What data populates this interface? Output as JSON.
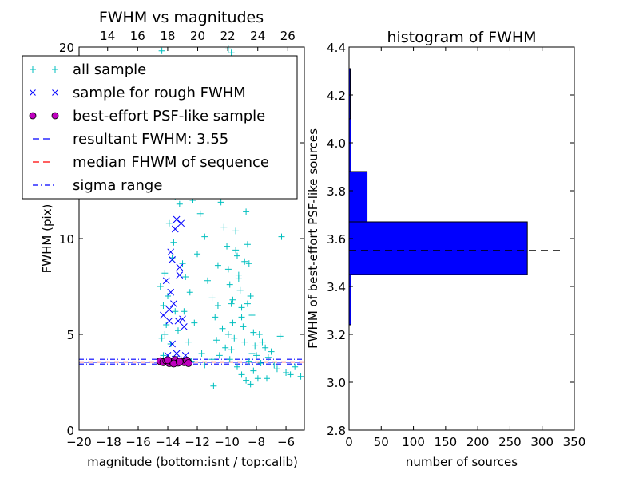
{
  "chart_data": [
    {
      "type": "scatter",
      "title": "FWHM vs magnitudes",
      "xlabel": "magnitude (bottom:isnt / top:calib)",
      "ylabel": "FWHM (pix)",
      "xlim": [
        -20,
        -4.76
      ],
      "ylim": [
        0,
        20
      ],
      "xticks": [
        "−20",
        "−18",
        "−16",
        "−14",
        "−12",
        "−10",
        "−8",
        "−6"
      ],
      "xtick_values": [
        -20,
        -18,
        -16,
        -14,
        -12,
        -10,
        -8,
        -6
      ],
      "yticks": [
        "0",
        "5",
        "10",
        "15",
        "20"
      ],
      "ytick_values": [
        0,
        5,
        10,
        15,
        20
      ],
      "top_xlim": [
        12.1,
        27.1
      ],
      "top_xticks": [
        "14",
        "16",
        "18",
        "20",
        "22",
        "24",
        "26"
      ],
      "top_xtick_values": [
        14,
        16,
        18,
        20,
        22,
        24,
        26
      ],
      "legend_position": "upper-left",
      "legend": [
        "all sample",
        "sample for rough FWHM",
        "best-effort PSF-like sample",
        "resultant FWHM: 3.55",
        "median FHWM of sequence",
        "sigma range"
      ],
      "colors": {
        "all": "#00bfbf",
        "rough": "#0000ff",
        "best": "#bf00bf",
        "resultant": "#0000ff",
        "median": "#ff0000",
        "sigma": "#0000ff"
      },
      "resultant_fwhm": 3.55,
      "median_fwhm": 3.56,
      "sigma_range": [
        3.45,
        3.7
      ],
      "series": [
        {
          "name": "all sample",
          "marker": "+",
          "points": [
            [
              -14.4,
              19.8
            ],
            [
              -9.9,
              19.9
            ],
            [
              -9.7,
              19.7
            ],
            [
              -14.3,
              6.5
            ],
            [
              -14.5,
              7.5
            ],
            [
              -14.2,
              8.2
            ],
            [
              -14.0,
              7.0
            ],
            [
              -14.1,
              5.5
            ],
            [
              -13.8,
              4.5
            ],
            [
              -14.4,
              4.8
            ],
            [
              -14.3,
              3.9
            ],
            [
              -13.5,
              12.2
            ],
            [
              -13.2,
              11.8
            ],
            [
              -13.9,
              10.8
            ],
            [
              -13.6,
              9.8
            ],
            [
              -13.0,
              8.7
            ],
            [
              -12.8,
              8.0
            ],
            [
              -12.5,
              7.2
            ],
            [
              -12.9,
              6.2
            ],
            [
              -13.3,
              5.2
            ],
            [
              -12.6,
              4.6
            ],
            [
              -12.2,
              5.6
            ],
            [
              -12.0,
              9.2
            ],
            [
              -11.8,
              11.3
            ],
            [
              -11.5,
              10.1
            ],
            [
              -11.3,
              7.8
            ],
            [
              -11.0,
              6.9
            ],
            [
              -10.8,
              5.9
            ],
            [
              -10.6,
              8.6
            ],
            [
              -10.4,
              11.9
            ],
            [
              -10.2,
              10.6
            ],
            [
              -10.0,
              9.6
            ],
            [
              -9.9,
              8.4
            ],
            [
              -9.8,
              7.6
            ],
            [
              -9.7,
              6.6
            ],
            [
              -9.6,
              5.6
            ],
            [
              -9.5,
              4.8
            ],
            [
              -9.4,
              10.4
            ],
            [
              -9.3,
              9.1
            ],
            [
              -9.2,
              8.1
            ],
            [
              -9.1,
              7.3
            ],
            [
              -9.0,
              6.4
            ],
            [
              -8.9,
              5.4
            ],
            [
              -8.8,
              4.6
            ],
            [
              -8.7,
              11.4
            ],
            [
              -8.6,
              9.7
            ],
            [
              -8.5,
              8.7
            ],
            [
              -8.4,
              7.0
            ],
            [
              -8.3,
              6.0
            ],
            [
              -8.2,
              5.1
            ],
            [
              -8.1,
              4.4
            ],
            [
              -8.0,
              3.9
            ],
            [
              -7.8,
              5.0
            ],
            [
              -7.6,
              4.6
            ],
            [
              -7.4,
              4.3
            ],
            [
              -7.2,
              3.8
            ],
            [
              -7.0,
              4.1
            ],
            [
              -6.8,
              3.4
            ],
            [
              -6.6,
              3.2
            ],
            [
              -6.4,
              4.9
            ],
            [
              -6.0,
              3.0
            ],
            [
              -5.7,
              2.9
            ],
            [
              -5.4,
              3.3
            ],
            [
              -5.0,
              2.8
            ],
            [
              -10.5,
              3.9
            ],
            [
              -10.1,
              4.3
            ],
            [
              -9.8,
              3.7
            ],
            [
              -9.3,
              3.3
            ],
            [
              -9.0,
              2.9
            ],
            [
              -8.7,
              2.6
            ],
            [
              -8.4,
              2.4
            ],
            [
              -8.2,
              3.1
            ],
            [
              -7.9,
              2.7
            ],
            [
              -11.5,
              3.4
            ],
            [
              -11.0,
              3.7
            ],
            [
              -10.7,
              4.7
            ],
            [
              -10.3,
              5.3
            ],
            [
              -9.6,
              6.8
            ],
            [
              -9.2,
              7.9
            ],
            [
              -8.8,
              8.8
            ],
            [
              -9.4,
              9.4
            ],
            [
              -10.9,
              2.3
            ],
            [
              -6.3,
              10.1
            ],
            [
              -11.7,
              4.0
            ],
            [
              -12.4,
              3.6
            ],
            [
              -13.1,
              3.7
            ],
            [
              -14.0,
              3.5
            ],
            [
              -9.9,
              5.0
            ],
            [
              -9.0,
              5.9
            ],
            [
              -8.6,
              6.6
            ],
            [
              -8.3,
              4.0
            ],
            [
              -7.7,
              3.5
            ],
            [
              -7.3,
              2.7
            ],
            [
              -12.3,
              12.0
            ],
            [
              -11.6,
              12.8
            ],
            [
              -13.7,
              9.0
            ],
            [
              -14.2,
              5.0
            ],
            [
              -13.5,
              6.2
            ],
            [
              -10.6,
              6.5
            ],
            [
              -9.7,
              4.2
            ],
            [
              -8.5,
              3.6
            ]
          ]
        },
        {
          "name": "sample for rough FWHM",
          "marker": "x",
          "points": [
            [
              -13.4,
              11.0
            ],
            [
              -13.1,
              10.8
            ],
            [
              -13.5,
              10.5
            ],
            [
              -13.8,
              9.3
            ],
            [
              -13.7,
              8.9
            ],
            [
              -13.2,
              8.5
            ],
            [
              -13.2,
              8.1
            ],
            [
              -14.3,
              6.0
            ],
            [
              -13.8,
              7.2
            ],
            [
              -13.6,
              6.6
            ],
            [
              -13.9,
              5.7
            ],
            [
              -13.3,
              5.7
            ],
            [
              -13.0,
              5.8
            ],
            [
              -12.9,
              5.4
            ],
            [
              -13.7,
              4.5
            ],
            [
              -13.5,
              3.7
            ],
            [
              -14.0,
              3.9
            ],
            [
              -12.8,
              3.9
            ],
            [
              -14.1,
              7.8
            ],
            [
              -13.9,
              6.3
            ],
            [
              -13.4,
              4.0
            ]
          ]
        },
        {
          "name": "best-effort PSF-like sample",
          "marker": "o",
          "points": [
            [
              -14.5,
              3.6
            ],
            [
              -14.3,
              3.55
            ],
            [
              -14.1,
              3.62
            ],
            [
              -13.9,
              3.5
            ],
            [
              -13.7,
              3.58
            ],
            [
              -13.5,
              3.66
            ],
            [
              -13.3,
              3.52
            ],
            [
              -13.1,
              3.6
            ],
            [
              -12.9,
              3.55
            ],
            [
              -12.7,
              3.63
            ],
            [
              -12.6,
              3.5
            ],
            [
              -14.0,
              3.65
            ],
            [
              -13.6,
              3.48
            ],
            [
              -13.2,
              3.57
            ]
          ]
        }
      ]
    },
    {
      "type": "bar",
      "orientation": "horizontal",
      "title": "histogram of FWHM",
      "xlabel": "number of sources",
      "ylabel": "FWHM of best-effort PSF-like sources",
      "xlim": [
        0,
        350
      ],
      "ylim": [
        2.8,
        4.4
      ],
      "xticks": [
        "0",
        "50",
        "100",
        "150",
        "200",
        "250",
        "300",
        "350"
      ],
      "xtick_values": [
        0,
        50,
        100,
        150,
        200,
        250,
        300,
        350
      ],
      "yticks": [
        "2.8",
        "3.0",
        "3.2",
        "3.4",
        "3.6",
        "3.8",
        "4.0",
        "4.2",
        "4.4"
      ],
      "ytick_values": [
        2.8,
        3.0,
        3.2,
        3.4,
        3.6,
        3.8,
        4.0,
        4.2,
        4.4
      ],
      "bins": [
        [
          3.24,
          3.45
        ],
        [
          3.45,
          3.67
        ],
        [
          3.67,
          3.88
        ],
        [
          3.88,
          4.1
        ],
        [
          4.1,
          4.31
        ]
      ],
      "values": [
        3,
        277,
        28,
        3,
        2
      ],
      "bar_color": "#0000ff",
      "reference_line": {
        "value": 3.55,
        "xmax": 333,
        "color": "#000000"
      }
    }
  ]
}
